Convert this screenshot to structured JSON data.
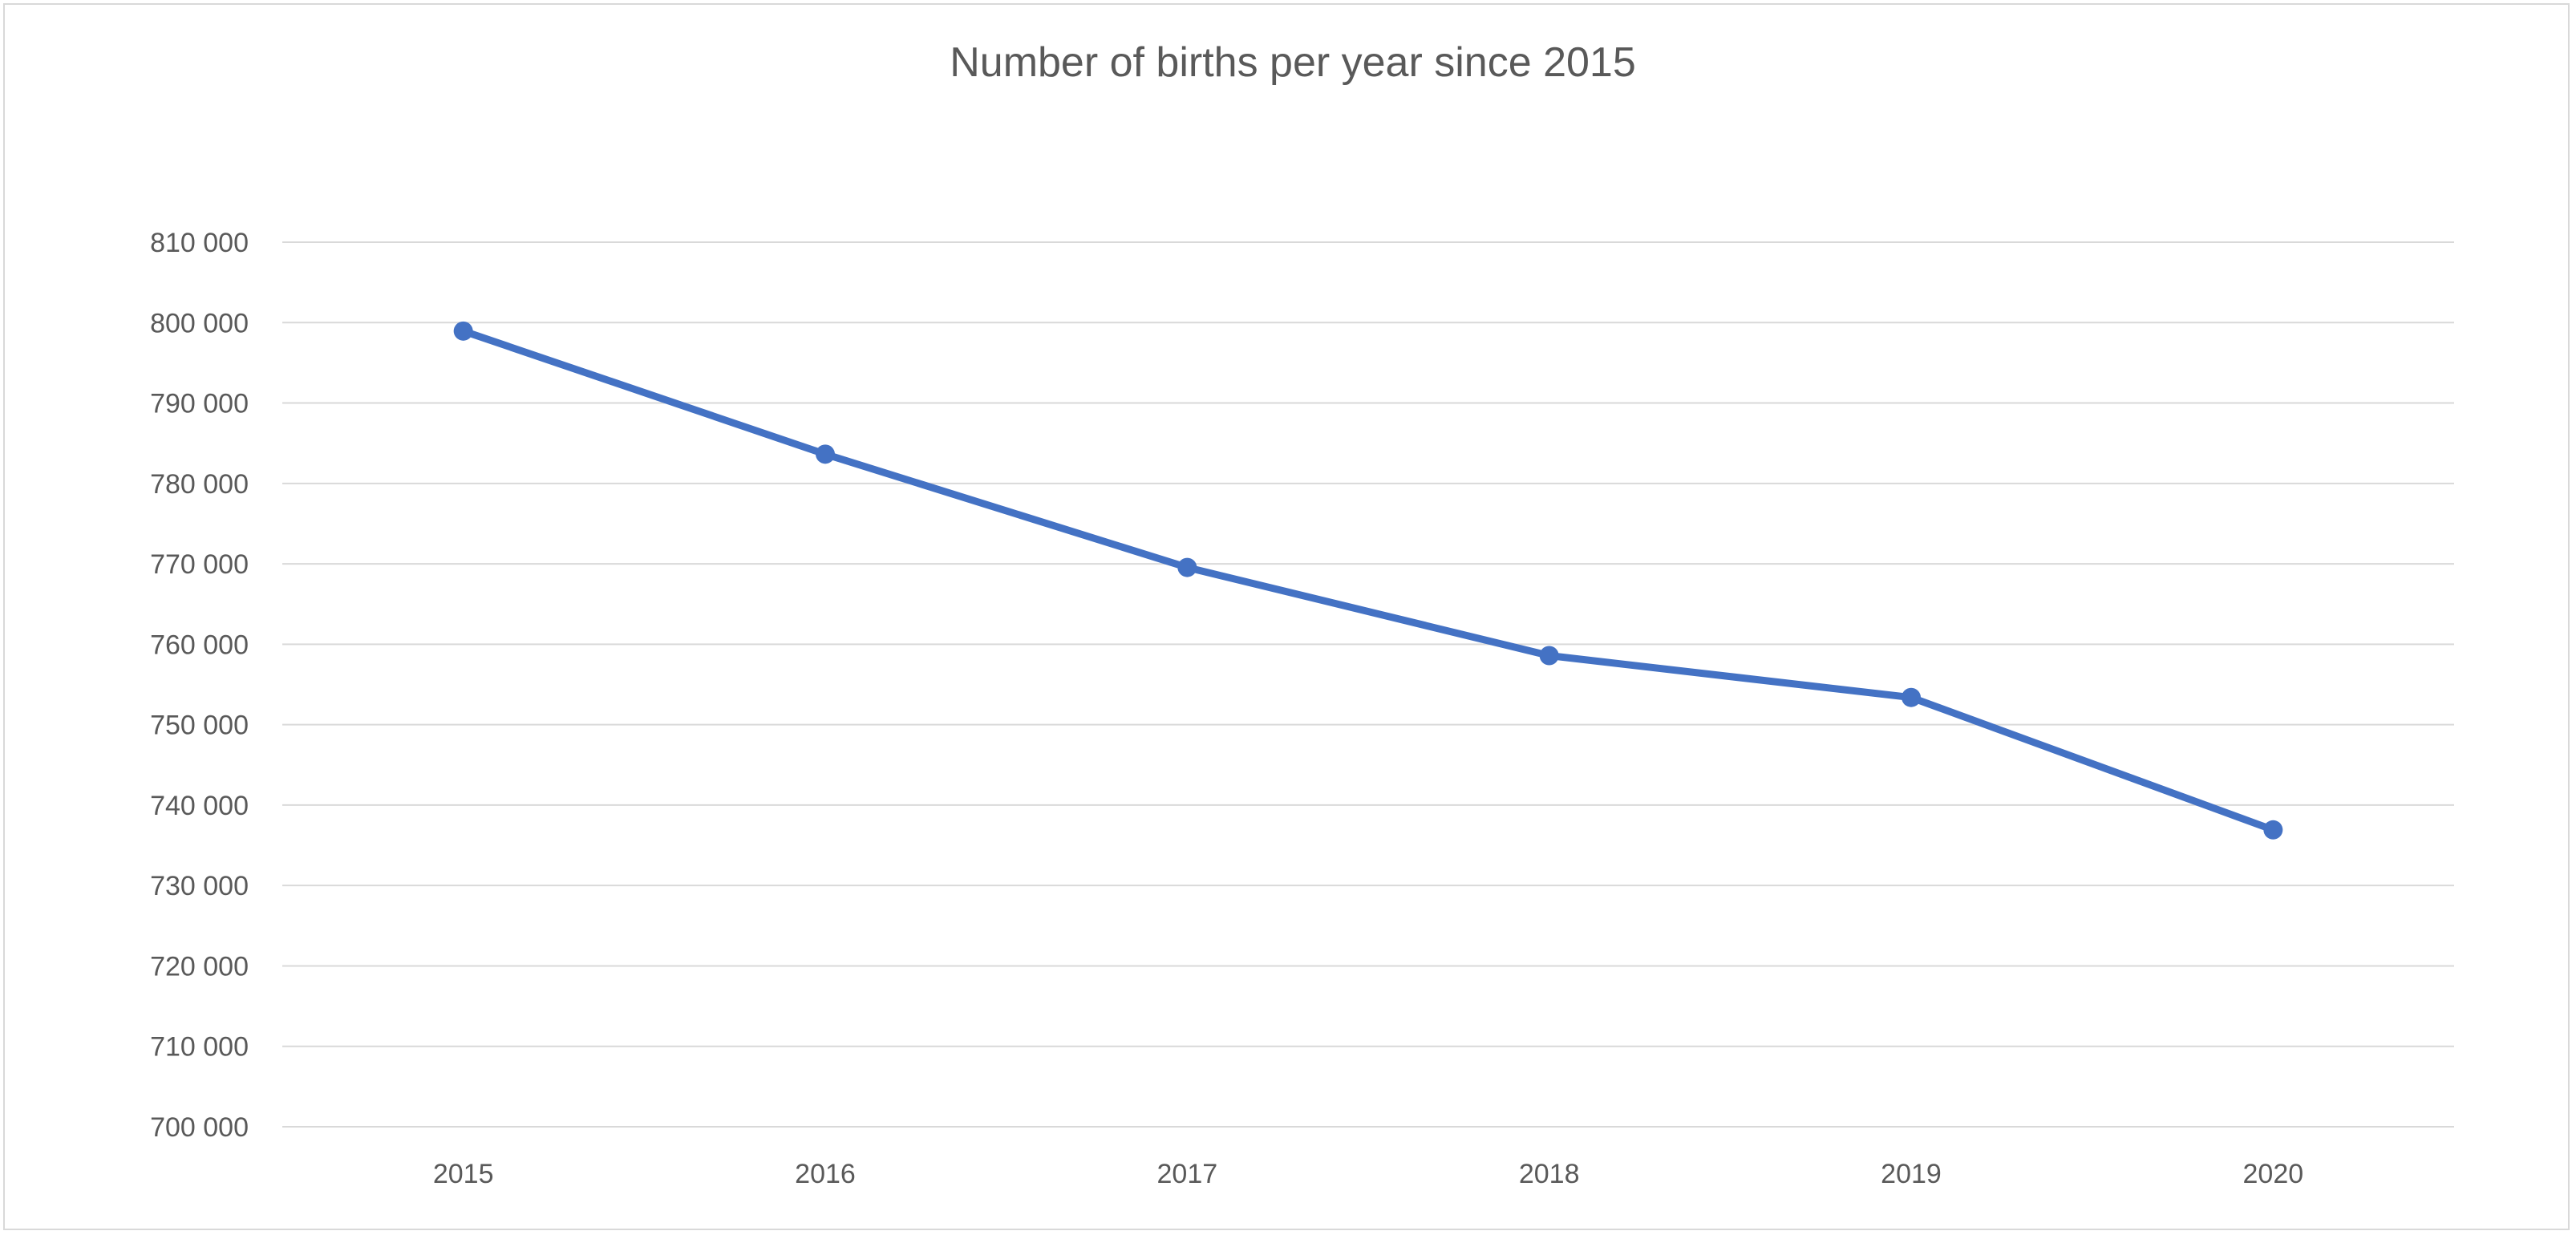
{
  "chart_data": {
    "type": "line",
    "title": "Number of births per year since 2015",
    "categories": [
      "2015",
      "2016",
      "2017",
      "2018",
      "2019",
      "2020"
    ],
    "series": [
      {
        "values": [
          798948,
          783640,
          769553,
          758590,
          753383,
          736920
        ]
      }
    ],
    "ylim": [
      700000,
      810000
    ],
    "yticks": [
      700000,
      710000,
      720000,
      730000,
      740000,
      750000,
      760000,
      770000,
      780000,
      790000,
      800000,
      810000
    ],
    "ytick_labels": [
      "700 000",
      "710 000",
      "720 000",
      "730 000",
      "740 000",
      "750 000",
      "760 000",
      "770 000",
      "780 000",
      "790 000",
      "800 000",
      "810 000"
    ],
    "grid": true,
    "legend": "none",
    "colors": {
      "line": "#4472c4",
      "grid": "#d9d9d9",
      "text": "#595959"
    }
  }
}
